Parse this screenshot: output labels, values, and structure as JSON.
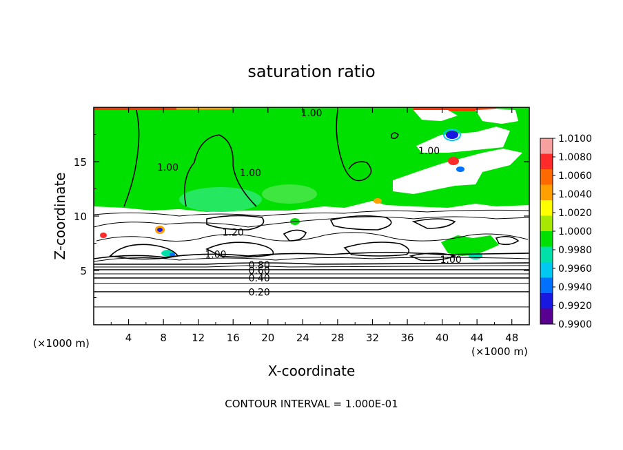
{
  "chart_data": {
    "type": "heatmap",
    "title": "saturation ratio",
    "xlabel": "X-coordinate",
    "ylabel": "Z-coordinate",
    "x_unit_left": "(×1000 m)",
    "x_unit_right": "(×1000 m)",
    "xlim": [
      0,
      50
    ],
    "ylim": [
      0,
      20
    ],
    "xticks": [
      "4",
      "8",
      "12",
      "16",
      "20",
      "24",
      "28",
      "32",
      "36",
      "40",
      "44",
      "48"
    ],
    "yticks": [
      "5",
      "10",
      "15"
    ],
    "footer": "CONTOUR INTERVAL = 1.000E-01",
    "colorbar": {
      "labels": [
        "1.0100",
        "1.0080",
        "1.0060",
        "1.0040",
        "1.0020",
        "1.0000",
        "0.9980",
        "0.9960",
        "0.9940",
        "0.9920",
        "0.9900"
      ],
      "colors": [
        "#f7a0a0",
        "#ff2a2a",
        "#ff6a00",
        "#ffa000",
        "#ffff00",
        "#a8e800",
        "#00e000",
        "#00e0a8",
        "#00c8f0",
        "#0070ff",
        "#1818e0",
        "#5a0090"
      ]
    },
    "contour_labels": [
      {
        "text": "1.00",
        "x": 25.0,
        "z": 19.5
      },
      {
        "text": "1.00",
        "x": 8.5,
        "z": 14.5
      },
      {
        "text": "1.00",
        "x": 18.0,
        "z": 14.0
      },
      {
        "text": "1.00",
        "x": 38.5,
        "z": 16.0
      },
      {
        "text": "1.20",
        "x": 16.0,
        "z": 8.5
      },
      {
        "text": "1.00",
        "x": 14.0,
        "z": 6.5
      },
      {
        "text": "1.00",
        "x": 41.0,
        "z": 6.0
      },
      {
        "text": "0.80",
        "x": 19.0,
        "z": 5.5
      },
      {
        "text": "0.60",
        "x": 19.0,
        "z": 5.0
      },
      {
        "text": "0.40",
        "x": 19.0,
        "z": 4.3
      },
      {
        "text": "0.20",
        "x": 19.0,
        "z": 3.0
      }
    ],
    "regions": {
      "upper": "saturation ratio ≈ 0.998–1.000 above z ≈ 11 km, with subsaturated patches near x ≈ 32–48",
      "lower": "line contours below z ≈ 11 km"
    }
  }
}
